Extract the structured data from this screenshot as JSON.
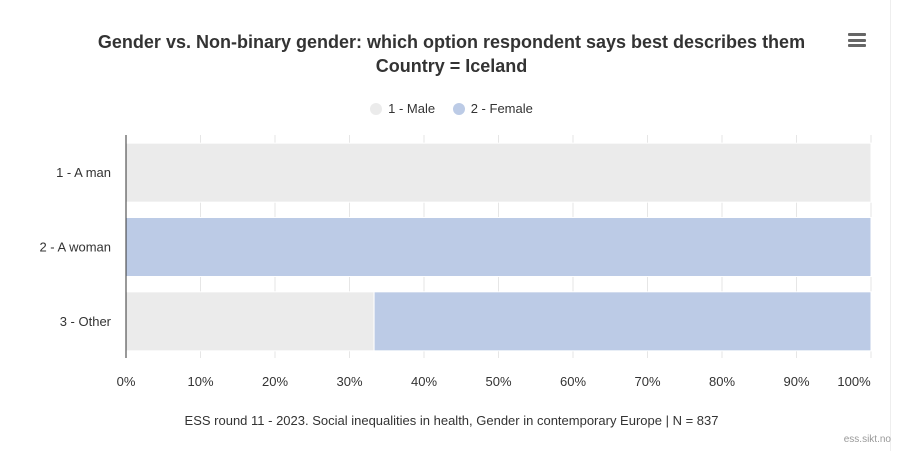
{
  "chart_data": {
    "type": "bar",
    "orientation": "horizontal",
    "stacking": "percent",
    "title": "Gender vs. Non-binary gender: which option respondent says best describes them",
    "subtitle": "Country = Iceland",
    "categories": [
      "1 - A man",
      "2 - A woman",
      "3 - Other"
    ],
    "series": [
      {
        "name": "1 - Male",
        "color": "#ebebeb",
        "values": [
          100,
          0,
          33.3
        ]
      },
      {
        "name": "2 - Female",
        "color": "#bccbe6",
        "values": [
          0,
          100,
          66.7
        ]
      }
    ],
    "xlim": [
      0,
      100
    ],
    "xticks": [
      "0%",
      "10%",
      "20%",
      "30%",
      "40%",
      "50%",
      "60%",
      "70%",
      "80%",
      "90%",
      "100%"
    ],
    "grid": true,
    "legend": "top-center",
    "caption": "ESS round 11 - 2023. Social inequalities in health, Gender in contemporary Europe | N = 837"
  },
  "credits": "ess.sikt.no",
  "menu_icon": "hamburger-menu-icon"
}
